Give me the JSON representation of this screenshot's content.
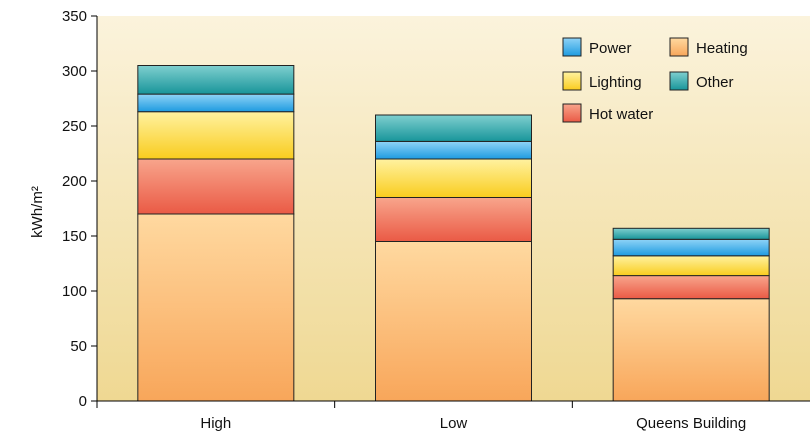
{
  "chart_data": {
    "type": "bar",
    "stacked": true,
    "ylabel": "kWh/m²",
    "ylim": [
      0,
      350
    ],
    "yticks": [
      0,
      50,
      100,
      150,
      200,
      250,
      300,
      350
    ],
    "categories": [
      "High",
      "Low",
      "Queens Building"
    ],
    "series": [
      {
        "name": "Heating",
        "values": [
          170,
          145,
          93
        ],
        "colors": [
          "#f8a65a",
          "#ffd9a0"
        ]
      },
      {
        "name": "Hot water",
        "values": [
          50,
          40,
          21
        ],
        "colors": [
          "#ea5a45",
          "#f8a58c"
        ]
      },
      {
        "name": "Lighting",
        "values": [
          43,
          35,
          18
        ],
        "colors": [
          "#f9cc1e",
          "#fff2a0"
        ]
      },
      {
        "name": "Power",
        "values": [
          16,
          16,
          15
        ],
        "colors": [
          "#1e9be0",
          "#8fd3f7"
        ]
      },
      {
        "name": "Other",
        "values": [
          26,
          24,
          10
        ],
        "colors": [
          "#18959a",
          "#7fcfcf"
        ]
      }
    ],
    "legend": {
      "placement": "top-right",
      "order": [
        "Power",
        "Heating",
        "Lighting",
        "Other",
        "Hot water"
      ]
    },
    "grid": false,
    "background": [
      "#fbf3dc",
      "#efd892"
    ]
  }
}
